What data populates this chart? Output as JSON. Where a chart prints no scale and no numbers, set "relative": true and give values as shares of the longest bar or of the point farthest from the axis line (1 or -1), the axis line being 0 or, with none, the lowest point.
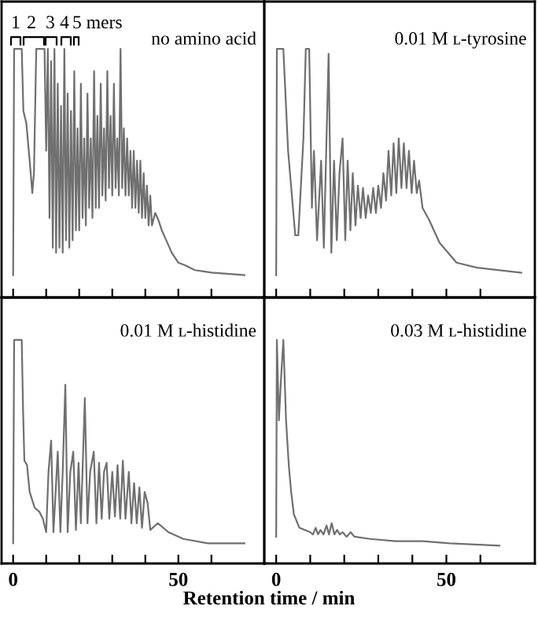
{
  "chart_data": [
    {
      "type": "line",
      "relative": true,
      "xlim": [
        -3.5,
        76
      ],
      "xticks": [
        0,
        {
          "value": 10,
          "label": null
        },
        {
          "value": 20,
          "label": null
        },
        {
          "value": 30,
          "label": null
        },
        {
          "value": 40,
          "label": null
        },
        {
          "value": 50,
          "label": null
        },
        {
          "value": 60,
          "label": null
        }
      ],
      "tick_labels": false,
      "grid": false,
      "legend": false,
      "annotations": [
        "no amino acid",
        "1",
        "2",
        "3",
        "4",
        "5 mers"
      ],
      "series": [
        {
          "color": "#707070",
          "x": [
            0,
            0.3,
            2.6,
            3.1,
            4.0,
            5.0,
            5.8,
            6.3,
            7.0,
            9.5,
            10.0,
            10.5,
            11.0,
            11.5,
            12.0,
            12.5,
            13.0,
            13.5,
            14.0,
            14.5,
            15.0,
            15.5,
            16.0,
            16.5,
            17.0,
            17.5,
            18.0,
            18.5,
            19.0,
            19.5,
            20.0,
            20.5,
            21.0,
            21.5,
            22.0,
            22.5,
            23.0,
            23.5,
            24.0,
            24.5,
            25.0,
            25.5,
            26.0,
            26.5,
            27.0,
            27.5,
            28.0,
            28.5,
            29.0,
            29.5,
            30.0,
            30.5,
            31.0,
            31.5,
            32.0,
            32.5,
            33.0,
            33.5,
            34.0,
            34.5,
            35.0,
            35.5,
            36.0,
            36.5,
            37.0,
            37.5,
            38.0,
            38.5,
            39.0,
            39.5,
            40.0,
            40.5,
            41.0,
            41.5,
            42.0,
            43,
            44,
            45,
            46,
            47,
            48,
            50,
            52,
            55,
            60,
            70
          ],
          "values": [
            0.09,
            1.0,
            1.0,
            0.75,
            0.7,
            0.55,
            0.42,
            0.5,
            1.0,
            1.0,
            0.59,
            1.0,
            0.32,
            0.95,
            0.2,
            1.0,
            0.18,
            0.86,
            0.2,
            0.77,
            0.18,
            1.0,
            0.23,
            0.82,
            0.2,
            0.75,
            0.23,
            0.91,
            0.27,
            0.68,
            0.27,
            0.86,
            0.32,
            0.64,
            0.29,
            0.82,
            0.36,
            0.64,
            0.32,
            0.91,
            0.36,
            0.73,
            0.36,
            0.86,
            0.41,
            0.68,
            0.39,
            0.91,
            0.44,
            0.73,
            0.41,
            0.86,
            0.44,
            0.64,
            0.41,
            1.0,
            0.44,
            0.68,
            0.41,
            0.64,
            0.41,
            0.59,
            0.36,
            0.59,
            0.36,
            0.55,
            0.34,
            0.55,
            0.32,
            0.5,
            0.32,
            0.45,
            0.29,
            0.41,
            0.29,
            0.34,
            0.31,
            0.27,
            0.24,
            0.21,
            0.18,
            0.14,
            0.13,
            0.11,
            0.1,
            0.09
          ]
        }
      ]
    },
    {
      "type": "line",
      "relative": true,
      "xlim": [
        -3.5,
        76
      ],
      "xticks": [
        0,
        {
          "value": 10,
          "label": null
        },
        {
          "value": 20,
          "label": null
        },
        {
          "value": 30,
          "label": null
        },
        {
          "value": 40,
          "label": null
        },
        {
          "value": 50,
          "label": null
        },
        {
          "value": 60,
          "label": null
        }
      ],
      "tick_labels": false,
      "grid": false,
      "legend": false,
      "annotations": [
        "0.01 M ʟ-tyrosine"
      ],
      "series": [
        {
          "color": "#707070",
          "x": [
            0,
            0.2,
            2.1,
            3.5,
            5.6,
            6.5,
            8.0,
            8.7,
            9.7,
            10.5,
            11.1,
            12.0,
            13.2,
            14.0,
            15.4,
            16.2,
            17.0,
            17.8,
            18.6,
            19.5,
            20.3,
            21.0,
            21.8,
            22.5,
            23.3,
            24.0,
            24.8,
            25.5,
            26.3,
            27.0,
            27.8,
            28.5,
            29.3,
            30.0,
            30.8,
            31.5,
            32.3,
            33.0,
            33.8,
            34.5,
            35.3,
            36.0,
            36.8,
            37.5,
            38.3,
            39.0,
            39.8,
            40.5,
            41.3,
            42.0,
            43,
            45,
            48,
            53,
            59,
            72
          ],
          "values": [
            0.09,
            1.0,
            1.0,
            0.59,
            0.25,
            0.25,
            0.64,
            1.0,
            1.0,
            0.36,
            0.59,
            0.23,
            0.55,
            0.2,
            0.98,
            0.18,
            0.55,
            0.23,
            0.5,
            0.64,
            0.23,
            0.55,
            0.27,
            0.5,
            0.29,
            0.45,
            0.32,
            0.44,
            0.32,
            0.41,
            0.34,
            0.44,
            0.34,
            0.45,
            0.36,
            0.5,
            0.39,
            0.59,
            0.41,
            0.62,
            0.42,
            0.64,
            0.44,
            0.62,
            0.44,
            0.59,
            0.42,
            0.55,
            0.42,
            0.47,
            0.36,
            0.31,
            0.22,
            0.14,
            0.12,
            0.1
          ]
        }
      ]
    },
    {
      "type": "line",
      "relative": true,
      "xlim": [
        -3.5,
        76
      ],
      "xticks": [
        0,
        {
          "value": 10,
          "label": null
        },
        {
          "value": 20,
          "label": null
        },
        {
          "value": 30,
          "label": null
        },
        {
          "value": 40,
          "label": null
        },
        50,
        {
          "value": 60,
          "label": null
        }
      ],
      "tick_labels": "x",
      "grid": false,
      "legend": false,
      "xlabel": "Retention time / min",
      "annotations": [
        "0.01 M ʟ-histidine"
      ],
      "series": [
        {
          "color": "#707070",
          "x": [
            0,
            0.3,
            2.6,
            3.0,
            3.4,
            4.2,
            5.0,
            6.5,
            8.0,
            9.0,
            10.0,
            10.7,
            11.5,
            12.2,
            13.0,
            13.5,
            14.3,
            15.0,
            15.8,
            16.5,
            17.3,
            18.2,
            19.0,
            19.8,
            20.5,
            21.7,
            22.5,
            23.3,
            24.4,
            25.2,
            26.0,
            26.8,
            27.5,
            28.3,
            29.1,
            30.0,
            30.8,
            31.6,
            32.4,
            33.2,
            34.0,
            35.0,
            35.8,
            36.6,
            37.4,
            38.2,
            39.0,
            39.8,
            40.7,
            41.5,
            43.8,
            47,
            51.5,
            59,
            70
          ],
          "values": [
            0.09,
            1.0,
            1.0,
            0.69,
            0.46,
            0.44,
            0.32,
            0.25,
            0.23,
            0.2,
            0.14,
            0.41,
            0.55,
            0.14,
            0.36,
            0.5,
            0.14,
            0.41,
            0.8,
            0.14,
            0.41,
            0.5,
            0.15,
            0.45,
            0.18,
            0.74,
            0.18,
            0.41,
            0.5,
            0.18,
            0.45,
            0.2,
            0.41,
            0.45,
            0.2,
            0.41,
            0.21,
            0.44,
            0.2,
            0.46,
            0.2,
            0.41,
            0.18,
            0.36,
            0.18,
            0.34,
            0.16,
            0.32,
            0.27,
            0.15,
            0.18,
            0.14,
            0.11,
            0.09,
            0.09
          ]
        }
      ]
    },
    {
      "type": "line",
      "relative": true,
      "xlim": [
        -3.5,
        76
      ],
      "xticks": [
        0,
        {
          "value": 10,
          "label": null
        },
        {
          "value": 20,
          "label": null
        },
        {
          "value": 30,
          "label": null
        },
        {
          "value": 40,
          "label": null
        },
        50,
        {
          "value": 60,
          "label": null
        }
      ],
      "tick_labels": "x",
      "grid": false,
      "legend": false,
      "annotations": [
        "0.03 M ʟ-histidine"
      ],
      "series": [
        {
          "color": "#707070",
          "x": [
            0,
            0.2,
            0.8,
            1.4,
            2.1,
            2.9,
            3.7,
            4.4,
            5.2,
            6.8,
            10.0,
            10.8,
            11.6,
            12.3,
            13.0,
            13.9,
            14.8,
            15.5,
            16.3,
            17.1,
            17.9,
            18.7,
            19.5,
            20.7,
            21.9,
            23.0,
            27.5,
            35,
            43,
            51,
            65.6
          ],
          "values": [
            0.12,
            1.0,
            0.64,
            0.82,
            1.0,
            0.64,
            0.44,
            0.32,
            0.22,
            0.16,
            0.14,
            0.13,
            0.16,
            0.13,
            0.15,
            0.13,
            0.17,
            0.13,
            0.18,
            0.13,
            0.15,
            0.13,
            0.14,
            0.12,
            0.14,
            0.12,
            0.11,
            0.1,
            0.1,
            0.09,
            0.08
          ]
        }
      ]
    }
  ]
}
